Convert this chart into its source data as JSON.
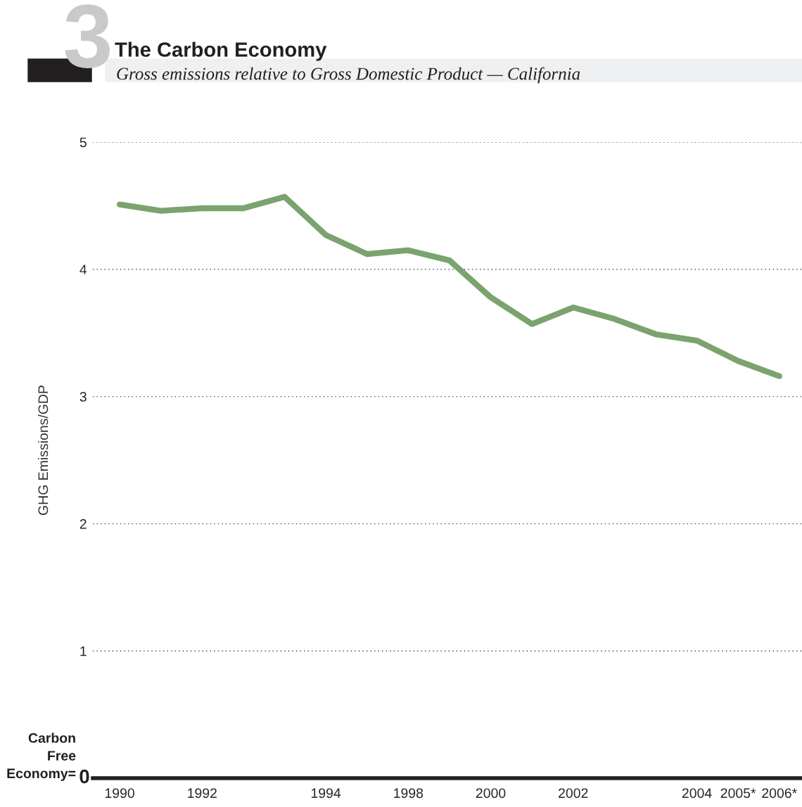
{
  "chart_data": {
    "type": "line",
    "title": "The Carbon Economy",
    "subtitle": "Gross emissions relative to Gross Domestic Product — California",
    "ylabel": "GHG Emissions/GDP",
    "annotations": [
      "3",
      "Carbon\nFree\nEconomy=",
      "0"
    ],
    "categories": [
      "1990",
      null,
      "1992",
      null,
      null,
      "1994",
      null,
      "1998",
      null,
      "2000",
      null,
      "2002",
      null,
      null,
      "2004",
      "2005*",
      "2006*"
    ],
    "series": [
      {
        "color": "#7aa36e",
        "values": [
          4.51,
          4.46,
          4.48,
          4.48,
          4.57,
          4.27,
          4.12,
          4.15,
          4.07,
          3.78,
          3.57,
          3.7,
          3.61,
          3.49,
          3.44,
          3.28,
          3.16
        ]
      }
    ],
    "ylim": [
      0,
      5
    ],
    "yticks": [
      1,
      2,
      3,
      4,
      5
    ],
    "grid": "y",
    "line_style": "solid",
    "marker": "none",
    "legend": false
  }
}
